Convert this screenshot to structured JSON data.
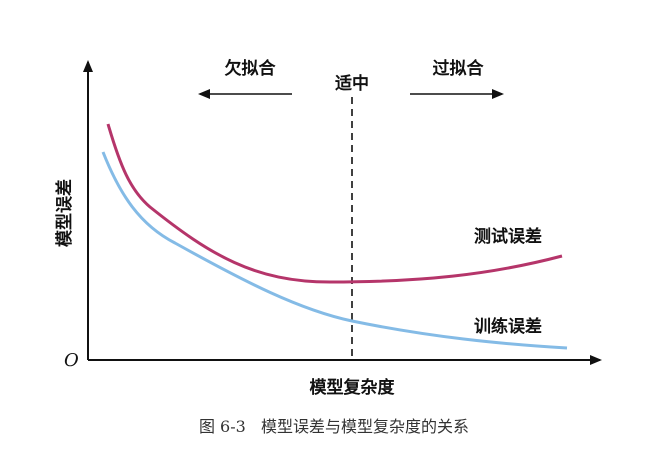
{
  "diagram": {
    "y_axis_label": "模型误差",
    "x_axis_label": "模型复杂度",
    "origin_label": "O",
    "underfit_label": "欠拟合",
    "optimal_label": "适中",
    "overfit_label": "过拟合",
    "test_error_label": "测试误差",
    "train_error_label": "训练误差",
    "caption": "图 6-3   模型误差与模型复杂度的关系",
    "colors": {
      "test_error": "#b5356a",
      "train_error": "#84bbe6",
      "axis": "#111111"
    }
  }
}
